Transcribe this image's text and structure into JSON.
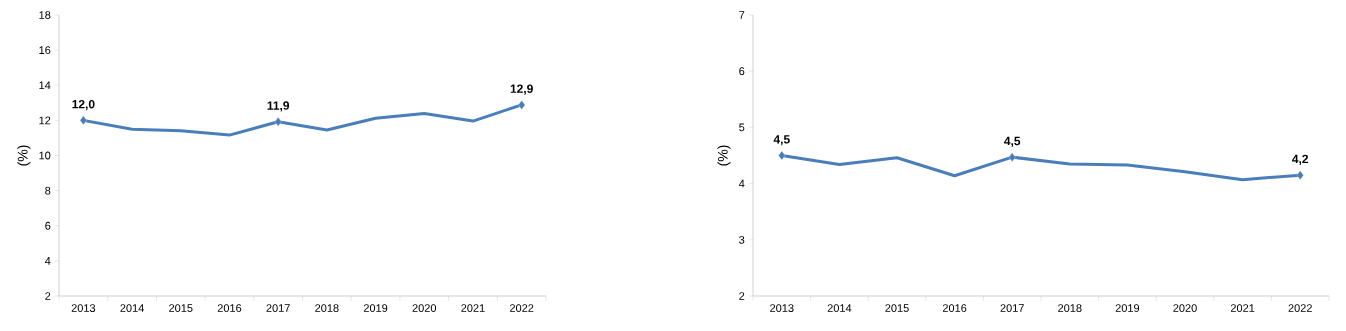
{
  "chart_data": [
    {
      "type": "line",
      "ylabel": "(%)",
      "categories": [
        "2013",
        "2014",
        "2015",
        "2016",
        "2017",
        "2018",
        "2019",
        "2020",
        "2021",
        "2022"
      ],
      "ylim": [
        2,
        18
      ],
      "yticks": [
        2,
        4,
        6,
        8,
        10,
        12,
        14,
        16,
        18
      ],
      "color": "#4a7ebb",
      "values": [
        12.0,
        11.49,
        11.41,
        11.16,
        11.92,
        11.45,
        12.12,
        12.39,
        11.96,
        12.88
      ],
      "value_labels": [
        "12,0",
        null,
        null,
        null,
        "11,9",
        null,
        null,
        null,
        null,
        "12,9"
      ]
    },
    {
      "type": "line",
      "ylabel": "(%)",
      "categories": [
        "2013",
        "2014",
        "2015",
        "2016",
        "2017",
        "2018",
        "2019",
        "2020",
        "2021",
        "2022"
      ],
      "ylim": [
        2,
        7
      ],
      "yticks": [
        2,
        3,
        4,
        5,
        6,
        7
      ],
      "color": "#4a7ebb",
      "values": [
        4.5,
        4.34,
        4.46,
        4.14,
        4.47,
        4.35,
        4.33,
        4.21,
        4.07,
        4.15
      ],
      "value_labels": [
        "4,5",
        null,
        null,
        null,
        "4,5",
        null,
        null,
        null,
        null,
        "4,2"
      ]
    }
  ]
}
